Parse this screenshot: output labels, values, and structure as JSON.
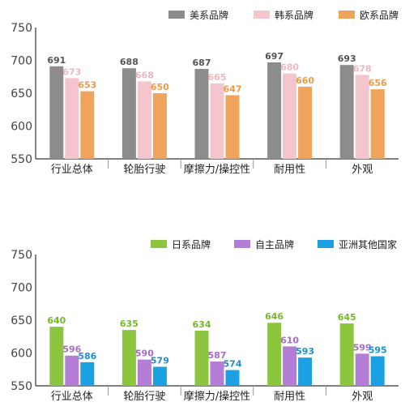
{
  "chart_data": [
    {
      "type": "bar",
      "categories": [
        "行业总体",
        "轮胎行驶",
        "摩擦力/操控性",
        "耐用性",
        "外观"
      ],
      "series": [
        {
          "name": "美系品牌",
          "color": "#8c8c8c",
          "label_color": "#555555",
          "values": [
            691,
            688,
            687,
            697,
            693
          ]
        },
        {
          "name": "韩系品牌",
          "color": "#f4c5cc",
          "label_color": "#f2b6bf",
          "values": [
            673,
            668,
            665,
            680,
            678
          ]
        },
        {
          "name": "欧系品牌",
          "color": "#f0a35a",
          "label_color": "#ee9a46",
          "values": [
            653,
            650,
            647,
            660,
            656
          ]
        }
      ],
      "ylim": [
        550,
        750
      ],
      "yticks": [
        550,
        600,
        650,
        700,
        750
      ],
      "grid": false,
      "legend": "top"
    },
    {
      "type": "bar",
      "categories": [
        "行业总体",
        "轮胎行驶",
        "摩擦力/操控性",
        "耐用性",
        "外观"
      ],
      "series": [
        {
          "name": "日系品牌",
          "color": "#8cc63e",
          "label_color": "#76b82a",
          "values": [
            640,
            635,
            634,
            646,
            645
          ]
        },
        {
          "name": "自主品牌",
          "color": "#b57ed6",
          "label_color": "#a66ccb",
          "values": [
            596,
            590,
            587,
            610,
            599
          ]
        },
        {
          "name": "亚洲其他国家",
          "color": "#1ba1e2",
          "label_color": "#1b8fd0",
          "values": [
            586,
            579,
            574,
            593,
            595
          ]
        }
      ],
      "ylim": [
        550,
        750
      ],
      "yticks": [
        550,
        600,
        650,
        700,
        750
      ],
      "grid": false,
      "legend": "top"
    }
  ]
}
